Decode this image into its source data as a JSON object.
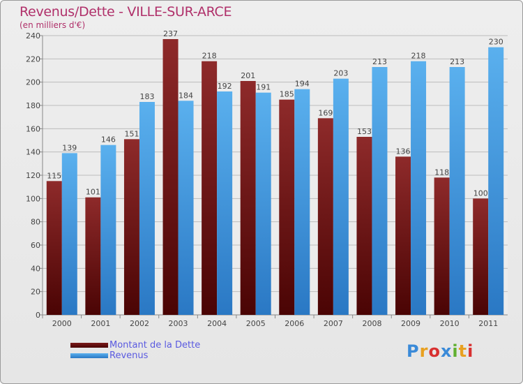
{
  "chart_data": {
    "type": "bar",
    "title": "Revenus/Dette - VILLE-SUR-ARCE",
    "subtitle": "(en milliers d'€)",
    "categories": [
      "2000",
      "2001",
      "2002",
      "2003",
      "2004",
      "2005",
      "2006",
      "2007",
      "2008",
      "2009",
      "2010",
      "2011"
    ],
    "series": [
      {
        "name": "Montant de la Dette",
        "color": "#7a1a1a",
        "values": [
          115,
          101,
          151,
          237,
          218,
          201,
          185,
          169,
          153,
          136,
          118,
          100
        ]
      },
      {
        "name": "Revenus",
        "color": "#4aa3e6",
        "values": [
          139,
          146,
          183,
          184,
          192,
          191,
          194,
          203,
          213,
          218,
          213,
          230
        ]
      }
    ],
    "ylim": [
      0,
      240
    ],
    "yticks": [
      0,
      20,
      40,
      60,
      80,
      100,
      120,
      140,
      160,
      180,
      200,
      220,
      240
    ],
    "grid": true,
    "legend": "bottom-left"
  },
  "logo": {
    "letters": [
      "P",
      "r",
      "o",
      "x",
      "i",
      "t",
      "i"
    ],
    "colors": [
      "#3a8ad8",
      "#e8a020",
      "#d83030",
      "#3a8ad8",
      "#60b030",
      "#e8a020",
      "#d83030"
    ]
  }
}
